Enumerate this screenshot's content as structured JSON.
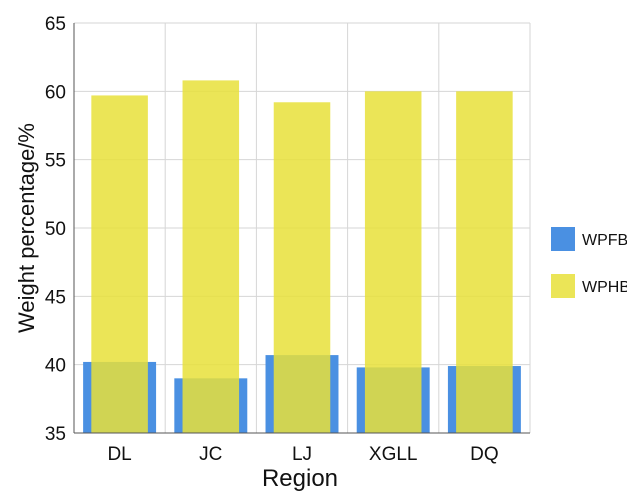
{
  "chart_data": {
    "type": "bar",
    "title": "",
    "xlabel": "Region",
    "ylabel": "Weight percentage/%",
    "categories": [
      "DL",
      "JC",
      "LJ",
      "XGLL",
      "DQ"
    ],
    "series": [
      {
        "name": "WPFB",
        "color": "#4a90e2",
        "values": [
          40.2,
          39.0,
          40.7,
          39.8,
          39.9
        ]
      },
      {
        "name": "WPHB",
        "color": "#e8e03a",
        "values": [
          59.7,
          60.8,
          59.2,
          60.0,
          60.0
        ]
      }
    ],
    "ylim": [
      35,
      65
    ],
    "yticks": [
      35,
      40,
      45,
      50,
      55,
      60,
      65
    ],
    "grid": true,
    "legend_position": "right",
    "overlay": true
  }
}
